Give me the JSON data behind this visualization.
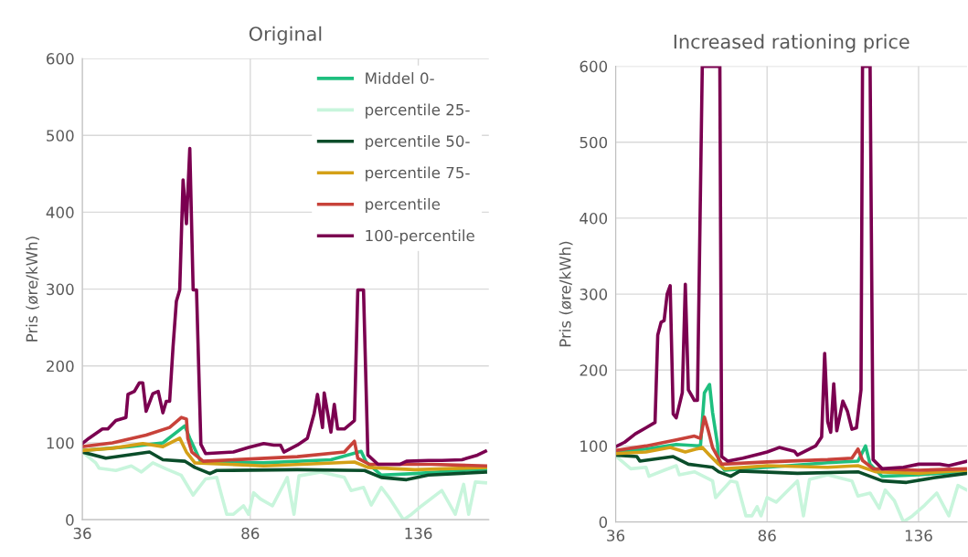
{
  "chart_data": [
    {
      "type": "line",
      "title": "Original",
      "ylabel": "Pris (øre/kWh)",
      "xlim": [
        36,
        157
      ],
      "xticks": [
        36,
        86,
        136
      ],
      "ylim": [
        0,
        600
      ],
      "yticks": [
        0,
        100,
        200,
        300,
        400,
        500,
        600
      ],
      "grid": true,
      "legend": "top right",
      "marker": "none",
      "line_style": "solid",
      "series": [
        {
          "name": "Middel 0-",
          "color": "#1fbf7f",
          "x": [
            36,
            50,
            60,
            66.5,
            68,
            71.3,
            90,
            110,
            119,
            120.5,
            125,
            135,
            156
          ],
          "values": [
            90,
            95,
            100,
            122,
            106,
            75,
            74,
            78,
            89,
            75,
            58,
            60,
            66
          ]
        },
        {
          "name": "percentile 25-",
          "color": "#c8f5dc",
          "x": [
            36,
            40,
            41,
            46,
            50.6,
            53.6,
            57,
            61,
            65.4,
            69,
            72.7,
            76,
            79,
            81,
            84,
            85.5,
            87,
            89,
            92.6,
            97,
            99,
            100.5,
            107,
            114,
            116,
            119.7,
            122,
            125,
            127.6,
            131.6,
            134,
            137,
            143,
            147,
            149.5,
            151,
            153,
            156
          ],
          "values": [
            88,
            74,
            67,
            64,
            70,
            62,
            74,
            66,
            58,
            32,
            53,
            55,
            7,
            7,
            18,
            7,
            35,
            27,
            18,
            55,
            7,
            57,
            62,
            55,
            38,
            42,
            19,
            42,
            27,
            0,
            7,
            18,
            38,
            7,
            46,
            7,
            49,
            48
          ]
        },
        {
          "name": "percentile 50-",
          "color": "#0b4d2a",
          "x": [
            36,
            43,
            56,
            60,
            66.6,
            69.5,
            74,
            76,
            100,
            120,
            125,
            132.5,
            139,
            156
          ],
          "values": [
            88,
            80,
            88,
            78,
            76,
            68,
            60,
            64,
            65,
            64,
            55,
            52,
            58,
            62
          ]
        },
        {
          "name": "percentile 75-",
          "color": "#d4a017",
          "x": [
            36,
            45,
            54,
            60,
            65,
            67,
            69.5,
            90,
            117,
            121,
            135,
            156
          ],
          "values": [
            90,
            93,
            99,
            95,
            106,
            88,
            74,
            70,
            75,
            68,
            65,
            68
          ]
        },
        {
          "name": "percentile",
          "color": "#c8423a",
          "x": [
            36,
            45,
            55,
            62,
            65.5,
            67,
            67.4,
            68.6,
            72,
            100,
            114,
            117,
            118,
            121.5,
            140,
            156
          ],
          "values": [
            95,
            100,
            110,
            120,
            133,
            131,
            106,
            88,
            76,
            82,
            88,
            102,
            80,
            72,
            72,
            70
          ]
        },
        {
          "name": "100-percentile",
          "color": "#7b0050",
          "x": [
            36,
            38,
            42,
            43.6,
            46,
            49,
            49.6,
            51.5,
            53,
            54,
            55,
            57,
            58.6,
            60,
            61,
            62,
            63,
            64,
            65,
            66,
            67,
            68,
            69,
            70,
            71.3,
            72.7,
            81,
            85.5,
            90,
            93,
            95,
            96,
            100,
            103,
            105,
            106,
            107.5,
            108,
            110,
            111,
            112,
            114,
            117,
            118,
            119.7,
            121,
            124,
            130.5,
            132.5,
            139,
            143,
            149,
            153.6,
            156
          ],
          "values": [
            99,
            106,
            118,
            118,
            129,
            133,
            163,
            167,
            178,
            178,
            141,
            164,
            167,
            139,
            154,
            154,
            224,
            284,
            299,
            442,
            385,
            483,
            299,
            299,
            98,
            86,
            88,
            94,
            99,
            97,
            97,
            88,
            97,
            106,
            138,
            163,
            120,
            165,
            114,
            150,
            118,
            118,
            129,
            299,
            299,
            84,
            72,
            72,
            76,
            77,
            77,
            78,
            84,
            89
          ]
        }
      ]
    },
    {
      "type": "line",
      "title": "Increased rationing price",
      "ylabel": "Pris (øre/kWh)",
      "xlim": [
        36,
        152
      ],
      "xticks": [
        36,
        86,
        136
      ],
      "ylim": [
        0,
        600
      ],
      "yticks": [
        0,
        100,
        200,
        300,
        400,
        500,
        600
      ],
      "grid": true,
      "marker": "none",
      "line_style": "solid",
      "series": [
        {
          "color": "#1fbf7f",
          "x": [
            36,
            46,
            56,
            64,
            65.3,
            67,
            68,
            69.6,
            70,
            72,
            86,
            106,
            116,
            118.5,
            120,
            124,
            136,
            152
          ],
          "values": [
            92,
            96,
            102,
            100,
            170,
            181,
            144,
            103,
            78,
            68,
            72,
            78,
            80,
            100,
            76,
            60,
            62,
            66
          ]
        },
        {
          "color": "#c8f5dc",
          "x": [
            36,
            41,
            46,
            47,
            52,
            56,
            57,
            62,
            68,
            69,
            74,
            76,
            79,
            81,
            82.7,
            84,
            86,
            89,
            92,
            96,
            98,
            100,
            106,
            114,
            116,
            120,
            123,
            125,
            128,
            131,
            134,
            138,
            142,
            146,
            149,
            152
          ],
          "values": [
            87,
            70,
            72,
            60,
            68,
            74,
            62,
            66,
            54,
            32,
            54,
            52,
            8,
            8,
            20,
            8,
            32,
            26,
            38,
            54,
            8,
            56,
            62,
            54,
            34,
            38,
            18,
            42,
            28,
            0,
            8,
            22,
            38,
            8,
            48,
            42
          ]
        },
        {
          "color": "#0b4d2a",
          "x": [
            36,
            43,
            44,
            55,
            60,
            68,
            70,
            74,
            77,
            96,
            116,
            124,
            132,
            141,
            152
          ],
          "values": [
            88,
            86,
            80,
            86,
            76,
            72,
            66,
            60,
            67,
            64,
            66,
            54,
            52,
            58,
            64
          ]
        },
        {
          "color": "#d4a017",
          "x": [
            36,
            46,
            54,
            59,
            64.6,
            67,
            70,
            72,
            86,
            106,
            116,
            122,
            136,
            152
          ],
          "values": [
            90,
            92,
            98,
            92,
            98,
            88,
            76,
            70,
            74,
            72,
            74,
            66,
            64,
            68
          ]
        },
        {
          "color": "#c8423a",
          "x": [
            36,
            46,
            56,
            62,
            64,
            65.3,
            66.6,
            68,
            71,
            86,
            106,
            114,
            116,
            117.5,
            121,
            136,
            152
          ],
          "values": [
            94,
            100,
            108,
            113,
            110,
            138,
            120,
            98,
            76,
            79,
            82,
            84,
            96,
            81,
            70,
            68,
            70
          ]
        },
        {
          "color": "#7b0050",
          "x": [
            36,
            39,
            42.5,
            46,
            49,
            49.9,
            51,
            52,
            53,
            54,
            55,
            56,
            58,
            59,
            60,
            62,
            63,
            64.6,
            70.4,
            71,
            73,
            78,
            84,
            86,
            90,
            95,
            96,
            102,
            104,
            105,
            106,
            107,
            108,
            109,
            111,
            112.5,
            114,
            115.5,
            117,
            117.5,
            120,
            121,
            124,
            131,
            136,
            143,
            146,
            152
          ],
          "values": [
            99,
            105,
            116,
            124,
            131,
            246,
            263,
            265,
            300,
            311,
            142,
            137,
            170,
            313,
            174,
            160,
            160,
            600,
            600,
            86,
            80,
            84,
            90,
            92,
            98,
            93,
            88,
            100,
            112,
            222,
            132,
            118,
            182,
            120,
            159,
            146,
            122,
            124,
            174,
            600,
            600,
            82,
            70,
            72,
            76,
            76,
            74,
            80
          ]
        }
      ]
    }
  ]
}
